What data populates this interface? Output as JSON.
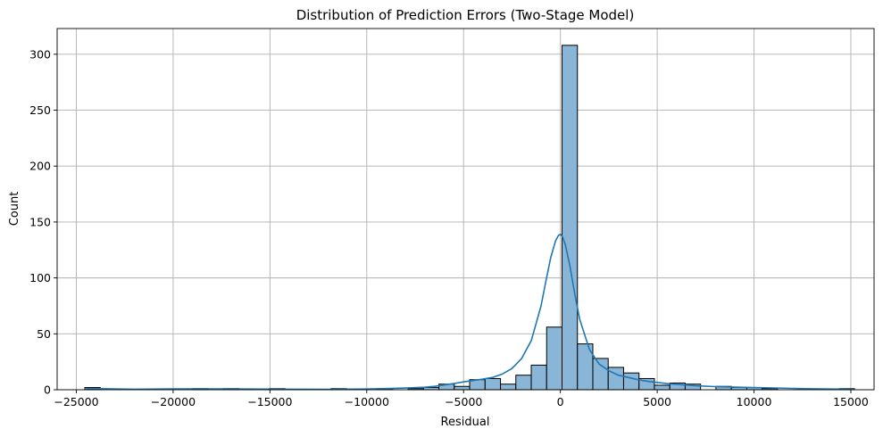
{
  "chart_data": {
    "type": "bar",
    "title": "Distribution of Prediction Errors (Two-Stage Model)",
    "xlabel": "Residual",
    "ylabel": "Count",
    "xlim": [
      -25990,
      16200
    ],
    "ylim": [
      0,
      323
    ],
    "grid": true,
    "bar_color": "#89b5d6",
    "edge_color": "#000000",
    "kde_color": "#1f77b4",
    "x_ticks": [
      -25000,
      -20000,
      -15000,
      -10000,
      -5000,
      0,
      5000,
      10000,
      15000
    ],
    "x_tick_labels": [
      "−25000",
      "−20000",
      "−15000",
      "−10000",
      "−5000",
      "0",
      "5000",
      "10000",
      "15000"
    ],
    "y_ticks": [
      0,
      50,
      100,
      150,
      200,
      250,
      300
    ],
    "y_tick_labels": [
      "0",
      "50",
      "100",
      "150",
      "200",
      "250",
      "300"
    ],
    "bin_start": -24560,
    "bin_width": 795,
    "counts": [
      2,
      0,
      0,
      0,
      0,
      0,
      0,
      1,
      0,
      1,
      0,
      0,
      1,
      0,
      0,
      0,
      1,
      0,
      0,
      1,
      0,
      1,
      2,
      5,
      3,
      9,
      10,
      5,
      13,
      22,
      56,
      308,
      41,
      28,
      20,
      15,
      10,
      4,
      6,
      5,
      0,
      3,
      2,
      2,
      1,
      0,
      0,
      0,
      0,
      1
    ],
    "kde": {
      "x": [
        -24500,
        -22000,
        -20000,
        -18000,
        -16000,
        -14000,
        -12000,
        -10000,
        -9000,
        -8000,
        -7000,
        -6500,
        -6000,
        -5500,
        -5000,
        -4500,
        -4000,
        -3500,
        -3000,
        -2500,
        -2000,
        -1500,
        -1000,
        -750,
        -500,
        -250,
        -100,
        0,
        100,
        250,
        500,
        750,
        1000,
        1500,
        2000,
        2500,
        3000,
        3500,
        4000,
        4500,
        5000,
        5500,
        6000,
        6500,
        7000,
        8000,
        9000,
        10000,
        11000,
        12000,
        13000,
        14000,
        15200
      ],
      "y": [
        1.0,
        0.5,
        0.7,
        0.8,
        0.6,
        0.5,
        0.4,
        0.6,
        1.0,
        1.5,
        2.2,
        3.0,
        4.2,
        5.5,
        7.0,
        8.2,
        9.5,
        11,
        14,
        19,
        28,
        44,
        75,
        97,
        118,
        133,
        138,
        139,
        137,
        130,
        110,
        85,
        63,
        36,
        23,
        17,
        13,
        11,
        9,
        7.5,
        6.5,
        5.5,
        4.8,
        4.2,
        3.5,
        2.8,
        2.3,
        2.0,
        1.6,
        1.2,
        0.9,
        0.6,
        0.4
      ]
    }
  }
}
